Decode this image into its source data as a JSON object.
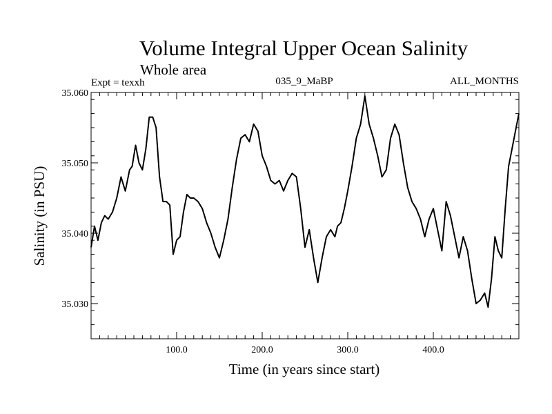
{
  "chart_data": {
    "type": "line",
    "title": "Volume Integral Upper Ocean Salinity",
    "subtitle": "Whole area",
    "header_left": "Expt = texxh",
    "header_center": "035_9_MaBP",
    "header_right": "ALL_MONTHS",
    "xlabel": "Time (in years since start)",
    "ylabel": "Salinity (in PSU)",
    "xlim": [
      0,
      500
    ],
    "ylim": [
      35.025,
      35.06
    ],
    "x_ticks": [
      100,
      200,
      300,
      400
    ],
    "x_tick_labels": [
      "100.0",
      "200.0",
      "300.0",
      "400.0"
    ],
    "y_ticks": [
      35.03,
      35.04,
      35.05,
      35.06
    ],
    "y_tick_labels": [
      "35.030",
      "35.040",
      "35.050",
      "35.060"
    ],
    "grid": false,
    "series": [
      {
        "name": "Salinity",
        "x": [
          0,
          4,
          8,
          12,
          16,
          20,
          25,
          30,
          35,
          40,
          45,
          48,
          52,
          56,
          60,
          64,
          68,
          72,
          76,
          80,
          84,
          88,
          92,
          96,
          100,
          104,
          108,
          112,
          116,
          120,
          125,
          130,
          135,
          140,
          145,
          150,
          155,
          160,
          165,
          170,
          175,
          180,
          185,
          190,
          195,
          200,
          205,
          210,
          215,
          220,
          225,
          230,
          235,
          240,
          245,
          250,
          255,
          260,
          265,
          270,
          275,
          280,
          285,
          288,
          292,
          296,
          300,
          305,
          310,
          315,
          320,
          325,
          330,
          335,
          340,
          345,
          350,
          355,
          360,
          365,
          370,
          375,
          380,
          385,
          390,
          395,
          400,
          405,
          410,
          415,
          420,
          425,
          430,
          435,
          440,
          445,
          450,
          455,
          460,
          464,
          468,
          472,
          476,
          480,
          484,
          488,
          492,
          496,
          500
        ],
        "y": [
          35.038,
          35.041,
          35.039,
          35.0415,
          35.0425,
          35.042,
          35.043,
          35.045,
          35.048,
          35.046,
          35.049,
          35.0495,
          35.0525,
          35.05,
          35.049,
          35.052,
          35.0565,
          35.0565,
          35.055,
          35.048,
          35.0445,
          35.0445,
          35.044,
          35.037,
          35.039,
          35.0395,
          35.043,
          35.0455,
          35.045,
          35.045,
          35.0445,
          35.0435,
          35.0415,
          35.04,
          35.038,
          35.0365,
          35.039,
          35.042,
          35.0465,
          35.0505,
          35.0535,
          35.054,
          35.053,
          35.0555,
          35.0545,
          35.051,
          35.0495,
          35.0475,
          35.047,
          35.0475,
          35.046,
          35.0475,
          35.0485,
          35.048,
          35.0435,
          35.038,
          35.0405,
          35.0365,
          35.033,
          35.0365,
          35.0395,
          35.0405,
          35.0395,
          35.041,
          35.0415,
          35.0435,
          35.046,
          35.0495,
          35.0535,
          35.0555,
          35.0595,
          35.0555,
          35.0535,
          35.051,
          35.048,
          35.049,
          35.0535,
          35.0555,
          35.054,
          35.05,
          35.0465,
          35.0445,
          35.0435,
          35.042,
          35.0395,
          35.042,
          35.0435,
          35.0405,
          35.0375,
          35.0445,
          35.0425,
          35.0395,
          35.0365,
          35.0395,
          35.0375,
          35.0335,
          35.03,
          35.0305,
          35.0315,
          35.0295,
          35.0335,
          35.0395,
          35.0375,
          35.0365,
          35.0435,
          35.0495,
          35.052,
          35.0545,
          35.057
        ]
      }
    ]
  }
}
